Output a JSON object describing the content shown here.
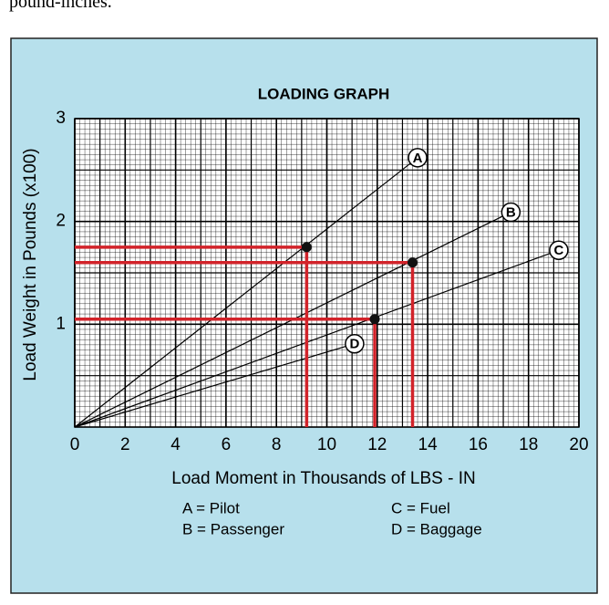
{
  "header_text": "pound-inches.",
  "chart_data": {
    "type": "line",
    "title": "LOADING GRAPH",
    "xlabel": "Load Moment in Thousands of LBS - IN",
    "ylabel": "Load Weight in Pounds (x100)",
    "xlim": [
      0,
      20
    ],
    "ylim": [
      0,
      3
    ],
    "xticks": [
      0,
      2,
      4,
      6,
      8,
      10,
      12,
      14,
      16,
      18,
      20
    ],
    "yticks": [
      1,
      2,
      3
    ],
    "grid": true,
    "series": [
      {
        "name": "A",
        "color": "#000000",
        "x": [
          0,
          13.6
        ],
        "values": [
          0,
          2.62
        ]
      },
      {
        "name": "B",
        "color": "#000000",
        "x": [
          0,
          17.3
        ],
        "values": [
          0,
          2.09
        ]
      },
      {
        "name": "C",
        "color": "#000000",
        "x": [
          0,
          19.2
        ],
        "values": [
          0,
          1.72
        ]
      },
      {
        "name": "D",
        "color": "#000000",
        "x": [
          0,
          11.1
        ],
        "values": [
          0,
          0.81
        ]
      }
    ],
    "reference_points": {
      "color": "#d2232a",
      "x": [
        9.2,
        13.4,
        11.9
      ],
      "values": [
        1.75,
        1.6,
        1.05
      ]
    },
    "legend": [
      "A = Pilot",
      "B = Passenger",
      "C = Fuel",
      "D = Baggage"
    ]
  }
}
